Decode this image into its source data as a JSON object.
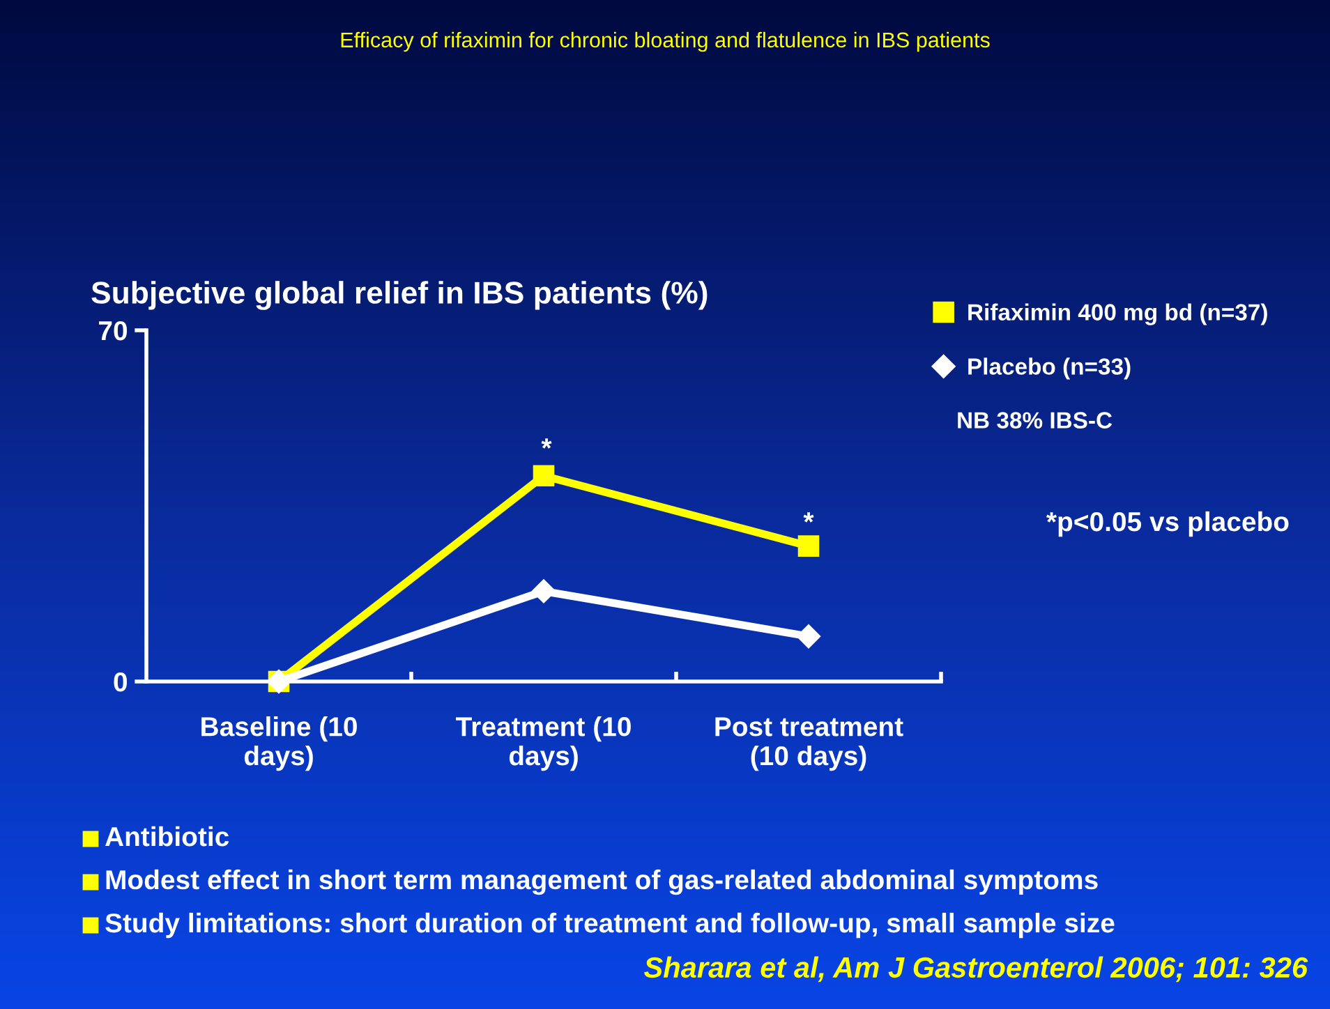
{
  "chart_data": {
    "type": "line",
    "title": "Efficacy of rifaximin for chronic bloating and flatulence in IBS patients",
    "subtitle": "Subjective global relief in IBS patients (%)",
    "categories": [
      "Baseline (10\ndays)",
      "Treatment (10\ndays)",
      "Post treatment\n(10 days)"
    ],
    "series": [
      {
        "name": "Rifaximin 400 mg bd (n=37)",
        "color": "#ffff00",
        "marker": "square",
        "values": [
          0,
          41,
          27
        ]
      },
      {
        "name": "Placebo (n=33)",
        "color": "#ffffff",
        "marker": "diamond",
        "values": [
          0,
          18,
          9
        ]
      }
    ],
    "ylim": [
      0,
      70
    ],
    "yticks": [
      0,
      70
    ],
    "grid": false,
    "legend": "right",
    "line_style": "solid",
    "annotations": [
      "*",
      "*",
      "NB 38% IBS-C",
      "*p<0.05 vs placebo",
      "Antibiotic",
      "Modest effect in short term management of gas-related abdominal symptoms",
      "Study limitations: short duration of treatment and follow-up, small sample size",
      "Sharara et al, Am J Gastroenterol 2006; 101: 326"
    ]
  }
}
